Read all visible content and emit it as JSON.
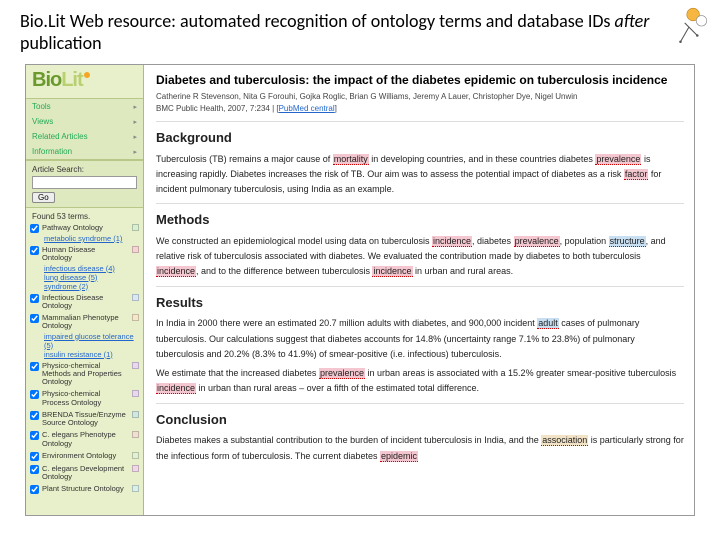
{
  "slide": {
    "title_a": "Bio.Lit Web resource: automated recognition of ontology terms and database IDs ",
    "title_em": "after",
    "title_b": " publication"
  },
  "logo": {
    "bio": "Bio",
    "lit": "Lit"
  },
  "nav": [
    "Tools",
    "Views",
    "Related Articles",
    "Information"
  ],
  "search": {
    "label": "Article Search:",
    "go": "Go"
  },
  "found": "Found 53 terms.",
  "ontologies": [
    {
      "name": "Pathway Ontology",
      "checked": true,
      "swatch": "#d8f0d0",
      "kids": [
        "metabolic syndrome (1)"
      ]
    },
    {
      "name": "Human Disease Ontology",
      "checked": true,
      "swatch": "#f7d4d4",
      "kids": [
        "infectious disease (4)",
        "lung disease (5)",
        "syndrome (2)"
      ]
    },
    {
      "name": "Infectious Disease Ontology",
      "checked": true,
      "swatch": "#d8e8f5",
      "kids": []
    },
    {
      "name": "Mammalian Phenotype Ontology",
      "checked": true,
      "swatch": "#f5e8c8",
      "kids": [
        "impaired glucose tolerance (5)",
        "insulin resistance (1)"
      ]
    },
    {
      "name": "Physico-chemical Methods and Properties Ontology",
      "checked": true,
      "swatch": "#e8d8f0",
      "kids": []
    },
    {
      "name": "Physico-chemical Process Ontology",
      "checked": true,
      "swatch": "#e8d8f0",
      "kids": []
    },
    {
      "name": "BRENDA Tissue/Enzyme Source Ontology",
      "checked": true,
      "swatch": "#d0e8e0",
      "kids": []
    },
    {
      "name": "C. elegans Phenotype Ontology",
      "checked": true,
      "swatch": "#f0e0d0",
      "kids": []
    },
    {
      "name": "Environment Ontology",
      "checked": true,
      "swatch": "#e0f0d0",
      "kids": []
    },
    {
      "name": "C. elegans Development Ontology",
      "checked": true,
      "swatch": "#f0d8e8",
      "kids": []
    },
    {
      "name": "Plant Structure Ontology",
      "checked": true,
      "swatch": "#d8f0e8",
      "kids": []
    }
  ],
  "article": {
    "title": "Diabetes and tuberculosis: the impact of the diabetes epidemic on tuberculosis incidence",
    "authors": "Catherine R Stevenson, Nita G Forouhi, Gojka Roglic, Brian G Williams, Jeremy A Lauer, Christopher Dye, Nigel Unwin",
    "cite_a": "BMC Public Health, 2007, 7:234 | [",
    "cite_link": "PubMed central",
    "cite_b": "]"
  },
  "highlights": {
    "pink": "#f4c6cf",
    "blue": "#c8dff2",
    "tan": "#f2e2c6"
  },
  "sections": [
    {
      "heading": "Background",
      "paras": [
        [
          {
            "t": "Tuberculosis (TB) remains a major cause of "
          },
          {
            "t": "mortality",
            "hl": "pink"
          },
          {
            "t": " in developing countries, and in these countries diabetes "
          },
          {
            "t": "prevalence",
            "hl": "pink"
          },
          {
            "t": " is increasing rapidly. Diabetes increases the risk of TB. Our aim was to assess the potential impact of diabetes as a risk "
          },
          {
            "t": "factor",
            "hl": "pink"
          },
          {
            "t": " for incident pulmonary tuberculosis, using India as an example."
          }
        ]
      ]
    },
    {
      "heading": "Methods",
      "paras": [
        [
          {
            "t": "We constructed an epidemiological model using data on tuberculosis "
          },
          {
            "t": "incidence",
            "hl": "pink"
          },
          {
            "t": ", diabetes "
          },
          {
            "t": "prevalence",
            "hl": "pink"
          },
          {
            "t": ", population "
          },
          {
            "t": "structure",
            "hl": "blue"
          },
          {
            "t": ", and relative risk of tuberculosis associated with diabetes. We evaluated the contribution made by diabetes to both tuberculosis "
          },
          {
            "t": "incidence",
            "hl": "pink"
          },
          {
            "t": ", and to the difference between tuberculosis "
          },
          {
            "t": "incidence",
            "hl": "pink"
          },
          {
            "t": " in urban and rural areas."
          }
        ]
      ]
    },
    {
      "heading": "Results",
      "paras": [
        [
          {
            "t": "In India in 2000 there were an estimated 20.7 million adults with diabetes, and 900,000 incident "
          },
          {
            "t": "adult",
            "hl": "blue"
          },
          {
            "t": " cases of pulmonary tuberculosis. Our calculations suggest that diabetes accounts for 14.8% (uncertainty range 7.1% to 23.8%) of pulmonary tuberculosis and 20.2% (8.3% to 41.9%) of smear-positive (i.e. infectious) tuberculosis."
          }
        ],
        [
          {
            "t": "We estimate that the increased diabetes "
          },
          {
            "t": "prevalence",
            "hl": "pink"
          },
          {
            "t": " in urban areas is associated with a 15.2% greater smear-positive tuberculosis "
          },
          {
            "t": "incidence",
            "hl": "pink"
          },
          {
            "t": " in urban than rural areas – over a fifth of the estimated total difference."
          }
        ]
      ]
    },
    {
      "heading": "Conclusion",
      "paras": [
        [
          {
            "t": "Diabetes makes a substantial contribution to the burden of incident tuberculosis in India, and the "
          },
          {
            "t": "association",
            "hl": "tan"
          },
          {
            "t": " is particularly strong for the infectious form of tuberculosis. The current diabetes "
          },
          {
            "t": "epidemic",
            "hl": "pink"
          }
        ]
      ]
    }
  ]
}
